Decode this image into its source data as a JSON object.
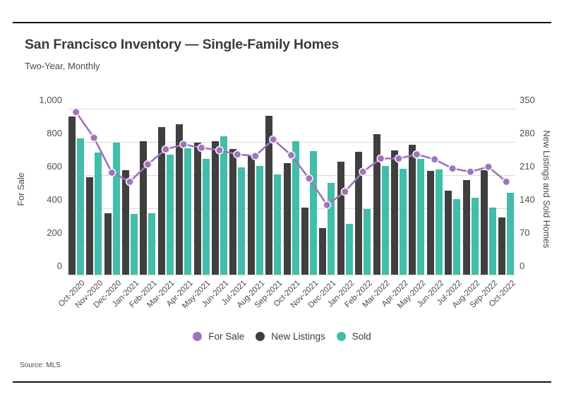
{
  "page": {
    "title": "San Francisco Inventory — Single-Family Homes",
    "subtitle": "Two-Year, Monthly",
    "source": "Source: MLS"
  },
  "legend": {
    "items": [
      {
        "label": "For Sale",
        "color": "#9e74ba"
      },
      {
        "label": "New Listings",
        "color": "#3f3f3f"
      },
      {
        "label": "Sold",
        "color": "#41bda9"
      }
    ]
  },
  "chart_data": {
    "type": "combo bar+line, dual axis",
    "title": "San Francisco Inventory — Single-Family Homes",
    "subtitle": "Two-Year, Monthly",
    "grid": true,
    "legend_position": "bottom",
    "categories": [
      "Oct-2020",
      "Nov-2020",
      "Dec-2020",
      "Jan-2021",
      "Feb-2021",
      "Mar-2021",
      "Apr-2021",
      "May-2021",
      "Jun-2021",
      "Jul-2021",
      "Aug-2021",
      "Sep-2021",
      "Oct-2021",
      "Nov-2021",
      "Dec-2021",
      "Jan-2022",
      "Feb-2022",
      "Mar-2022",
      "Apr-2022",
      "May-2022",
      "Jun-2022",
      "Jul-2022",
      "Aug-2022",
      "Sep-2022",
      "Oct-2022"
    ],
    "left_axis": {
      "label": "For Sale",
      "ticks": [
        "0",
        "200",
        "400",
        "600",
        "800",
        "1,000"
      ],
      "range": [
        0,
        1000
      ]
    },
    "right_axis": {
      "label": "New Listings and Sold Homes",
      "ticks": [
        "0",
        "70",
        "140",
        "210",
        "280",
        "350"
      ],
      "range": [
        0,
        350
      ]
    },
    "series": [
      {
        "name": "For Sale",
        "type": "line",
        "axis": "left",
        "color": "#9e74ba",
        "values": [
          980,
          825,
          615,
          560,
          665,
          755,
          785,
          765,
          750,
          725,
          715,
          815,
          720,
          580,
          420,
          500,
          620,
          700,
          700,
          725,
          695,
          640,
          620,
          650,
          560
        ]
      },
      {
        "name": "New Listings",
        "type": "bar",
        "axis": "right",
        "color": "#3f3f3f",
        "values": [
          333,
          206,
          130,
          221,
          281,
          312,
          317,
          278,
          281,
          265,
          251,
          335,
          236,
          141,
          99,
          239,
          259,
          296,
          262,
          274,
          219,
          177,
          200,
          220,
          120
        ]
      },
      {
        "name": "Sold",
        "type": "bar",
        "axis": "right",
        "color": "#41bda9",
        "values": [
          287,
          257,
          279,
          128,
          130,
          253,
          266,
          244,
          292,
          226,
          229,
          212,
          281,
          261,
          194,
          107,
          139,
          230,
          223,
          244,
          222,
          159,
          162,
          141,
          173
        ]
      }
    ]
  }
}
